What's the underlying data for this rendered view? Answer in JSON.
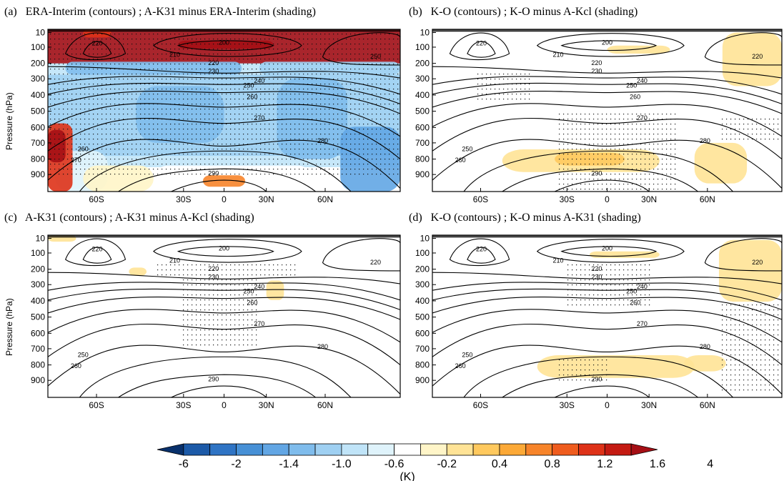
{
  "chart_data": [
    {
      "type": "heatmap",
      "panel": "(a)",
      "title": "ERA-Interim (contours) ; A-K31 minus ERA-Interim (shading)",
      "ylabel": "Pressure (hPa)",
      "y_ticks": [
        "10",
        "100",
        "200",
        "300",
        "400",
        "500",
        "600",
        "700",
        "800",
        "900"
      ],
      "x_ticks": [
        "60S",
        "30S",
        "0",
        "30N",
        "60N"
      ],
      "contour_labels": [
        "220",
        "210",
        "200",
        "220",
        "230",
        "240",
        "250",
        "260",
        "270",
        "280",
        "290",
        "250",
        "260",
        "270"
      ],
      "shading": [
        {
          "region": "stratosphere 10-200 hPa",
          "value": 4
        },
        {
          "region": "troposphere 200-900 hPa",
          "value": -1.0
        },
        {
          "region": "southern polar lower troposphere",
          "value": 4
        },
        {
          "region": "equatorial surface",
          "value": 0.4
        }
      ],
      "stippling": "widespread"
    },
    {
      "type": "heatmap",
      "panel": "(b)",
      "title": "K-O (contours) ; K-O minus A-Kcl (shading)",
      "ylabel": "",
      "y_ticks": [
        "10",
        "100",
        "200",
        "300",
        "400",
        "500",
        "600",
        "700",
        "800",
        "900"
      ],
      "x_ticks": [
        "60S",
        "30S",
        "0",
        "30N",
        "60N"
      ],
      "contour_labels": [
        "220",
        "210",
        "200",
        "220",
        "230",
        "240",
        "250",
        "260",
        "270",
        "280",
        "290",
        "220",
        "250",
        "260"
      ],
      "shading": [
        {
          "region": "southern stratosphere",
          "value": -0.2
        },
        {
          "region": "tropical 100 hPa",
          "value": 0.4
        },
        {
          "region": "northern stratosphere",
          "value": 0.4
        },
        {
          "region": "tropical 800 hPa",
          "value": 0.4
        }
      ],
      "stippling": "partial"
    },
    {
      "type": "heatmap",
      "panel": "(c)",
      "title": "A-K31 (contours) ; A-K31 minus A-Kcl (shading)",
      "ylabel": "Pressure (hPa)",
      "y_ticks": [
        "10",
        "100",
        "200",
        "300",
        "400",
        "500",
        "600",
        "700",
        "800",
        "900"
      ],
      "x_ticks": [
        "60S",
        "30S",
        "0",
        "30N",
        "60N"
      ],
      "contour_labels": [
        "220",
        "210",
        "200",
        "220",
        "230",
        "240",
        "250",
        "260",
        "270",
        "280",
        "290",
        "220",
        "250",
        "260"
      ],
      "shading": [
        {
          "region": "tropical 200 hPa",
          "value": 0.4
        },
        {
          "region": "northern 300 hPa",
          "value": 0.4
        }
      ],
      "stippling": "tropical column"
    },
    {
      "type": "heatmap",
      "panel": "(d)",
      "title": "K-O (contours) ; K-O minus A-K31 (shading)",
      "ylabel": "",
      "y_ticks": [
        "10",
        "100",
        "200",
        "300",
        "400",
        "500",
        "600",
        "700",
        "800",
        "900"
      ],
      "x_ticks": [
        "60S",
        "30S",
        "0",
        "30N",
        "60N"
      ],
      "contour_labels": [
        "220",
        "210",
        "200",
        "220",
        "230",
        "240",
        "250",
        "260",
        "270",
        "280",
        "290",
        "220",
        "250",
        "260"
      ],
      "shading": [
        {
          "region": "southern stratosphere",
          "value": -0.2
        },
        {
          "region": "tropical 200 hPa",
          "value": -0.2
        },
        {
          "region": "northern stratosphere",
          "value": 0.4
        },
        {
          "region": "800 hPa band",
          "value": 0.4
        }
      ],
      "stippling": "partial"
    }
  ],
  "colorbar": {
    "labels": [
      "-6",
      "-2",
      "-1.4",
      "-1.0",
      "-0.6",
      "-0.2",
      "0.4",
      "0.8",
      "1.2",
      "1.6",
      "4"
    ],
    "unit": "(K)",
    "colors": [
      "#08306b",
      "#1c5aa8",
      "#2f74c4",
      "#4790d6",
      "#62a6e4",
      "#7fbcec",
      "#9fd0f2",
      "#c0e4f8",
      "#dff3fb",
      "#ffffff",
      "#fff5c8",
      "#ffe396",
      "#ffc95e",
      "#fca937",
      "#f7842a",
      "#ef5c1e",
      "#de3218",
      "#c41a12",
      "#a50f15"
    ]
  }
}
